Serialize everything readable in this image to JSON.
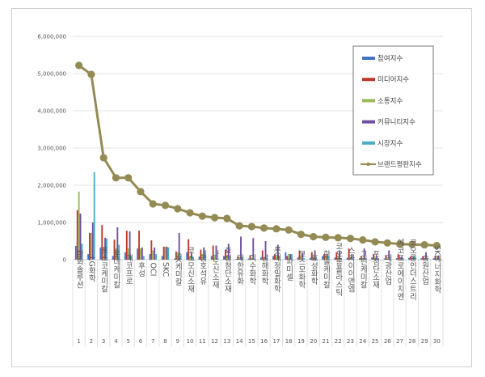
{
  "chart_data": {
    "type": "bar",
    "title": "",
    "xlabel": "",
    "ylabel": "",
    "ylim": [
      0,
      6000000
    ],
    "yticks": [
      "0",
      "1,000,000",
      "2,000,000",
      "3,000,000",
      "4,000,000",
      "5,000,000",
      "6,000,000"
    ],
    "grid": true,
    "legend_position": "top-right",
    "categories": [
      "한화솔루션",
      "LG화학",
      "포스코케미칼",
      "롯데케미칼",
      "에코프로",
      "후성",
      "OCI",
      "SKC",
      "SK케미칼",
      "코스모신소재",
      "금호석유",
      "나노신소재",
      "효성첨단소재",
      "대한유화",
      "이수화학",
      "남해화학",
      "롯데정밀화학",
      "파미셀",
      "코스모화학",
      "효성화학",
      "한솔케미칼",
      "코오롱플라스틱",
      "스카이이앤엠",
      "그린케미칼",
      "포첨단소재",
      "태광산업",
      "에코프로에이치엔",
      "코오롱인더스트리",
      "송원산업",
      "SK에너지화학"
    ],
    "ranks": [
      "1",
      "2",
      "3",
      "4",
      "5",
      "6",
      "7",
      "8",
      "9",
      "10",
      "11",
      "12",
      "13",
      "14",
      "15",
      "16",
      "17",
      "18",
      "19",
      "20",
      "21",
      "22",
      "23",
      "24",
      "25",
      "26",
      "27",
      "28",
      "29",
      "30"
    ],
    "series": [
      {
        "name": "참여지수",
        "type": "bar",
        "color": "#4472c4",
        "values": [
          370000,
          150000,
          330000,
          100000,
          200000,
          300000,
          150000,
          100000,
          30000,
          200000,
          80000,
          100000,
          100000,
          20000,
          30000,
          60000,
          100000,
          200000,
          60000,
          50000,
          100000,
          60000,
          50000,
          40000,
          60000,
          30000,
          40000,
          50000,
          40000,
          40000
        ]
      },
      {
        "name": "미디어지수",
        "type": "bar",
        "color": "#c0392b",
        "values": [
          1330000,
          720000,
          930000,
          540000,
          780000,
          780000,
          520000,
          350000,
          220000,
          550000,
          270000,
          380000,
          270000,
          80000,
          120000,
          250000,
          150000,
          100000,
          250000,
          200000,
          150000,
          200000,
          300000,
          100000,
          150000,
          120000,
          150000,
          80000,
          100000,
          110000
        ]
      },
      {
        "name": "소통지수",
        "type": "bar",
        "color": "#9bbb59",
        "values": [
          1830000,
          720000,
          330000,
          300000,
          300000,
          300000,
          250000,
          350000,
          200000,
          100000,
          150000,
          100000,
          100000,
          80000,
          50000,
          60000,
          100000,
          150000,
          80000,
          60000,
          120000,
          80000,
          60000,
          50000,
          60000,
          40000,
          50000,
          60000,
          50000,
          50000
        ]
      },
      {
        "name": "커뮤니티지수",
        "type": "bar",
        "color": "#7050a0",
        "values": [
          1240000,
          1000000,
          590000,
          870000,
          760000,
          330000,
          330000,
          350000,
          720000,
          200000,
          330000,
          380000,
          430000,
          620000,
          580000,
          500000,
          400000,
          150000,
          180000,
          250000,
          150000,
          250000,
          150000,
          300000,
          100000,
          250000,
          80000,
          80000,
          200000,
          110000
        ]
      },
      {
        "name": "시장지수",
        "type": "bar",
        "color": "#4bacc6",
        "values": [
          430000,
          2350000,
          570000,
          400000,
          100000,
          100000,
          150000,
          330000,
          100000,
          80000,
          250000,
          50000,
          100000,
          50000,
          30000,
          40000,
          100000,
          150000,
          40000,
          30000,
          100000,
          40000,
          30000,
          60000,
          40000,
          30000,
          40000,
          80000,
          30000,
          30000
        ]
      },
      {
        "name": "브랜드평판지수",
        "type": "line",
        "color": "#948a54",
        "values": [
          5220000,
          4980000,
          2740000,
          2200000,
          2200000,
          1830000,
          1500000,
          1460000,
          1370000,
          1260000,
          1170000,
          1130000,
          1110000,
          910000,
          890000,
          850000,
          830000,
          800000,
          680000,
          620000,
          600000,
          590000,
          570000,
          530000,
          480000,
          450000,
          420000,
          410000,
          400000,
          380000
        ]
      }
    ]
  }
}
